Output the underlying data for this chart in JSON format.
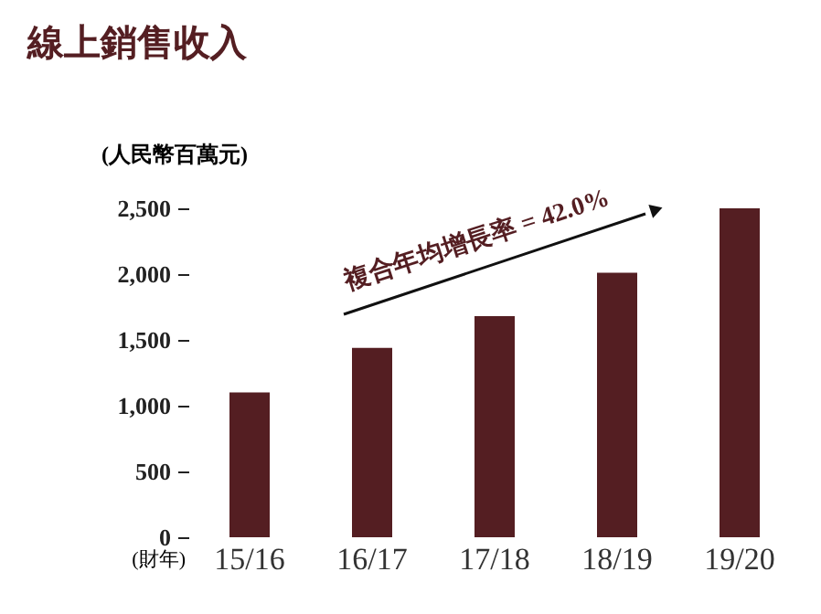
{
  "chart_data": {
    "type": "bar",
    "title": "線上銷售收入",
    "ylabel": "(人民幣百萬元)",
    "xlabel": "(財年)",
    "categories": [
      "15/16",
      "16/17",
      "17/18",
      "18/19",
      "19/20"
    ],
    "values": [
      1100,
      1440,
      1680,
      2010,
      2500
    ],
    "color": "#541e22",
    "ylim": [
      0,
      2500
    ],
    "yticks": [
      0,
      500,
      {
        "value": 1000,
        "label": "1,000"
      },
      {
        "value": 1500,
        "label": "1,500"
      },
      {
        "value": 2000,
        "label": "2,000"
      },
      {
        "value": 2500,
        "label": "2,500"
      }
    ],
    "annotations": [
      "複合年均增長率 = 42.0%"
    ],
    "grid": false
  }
}
